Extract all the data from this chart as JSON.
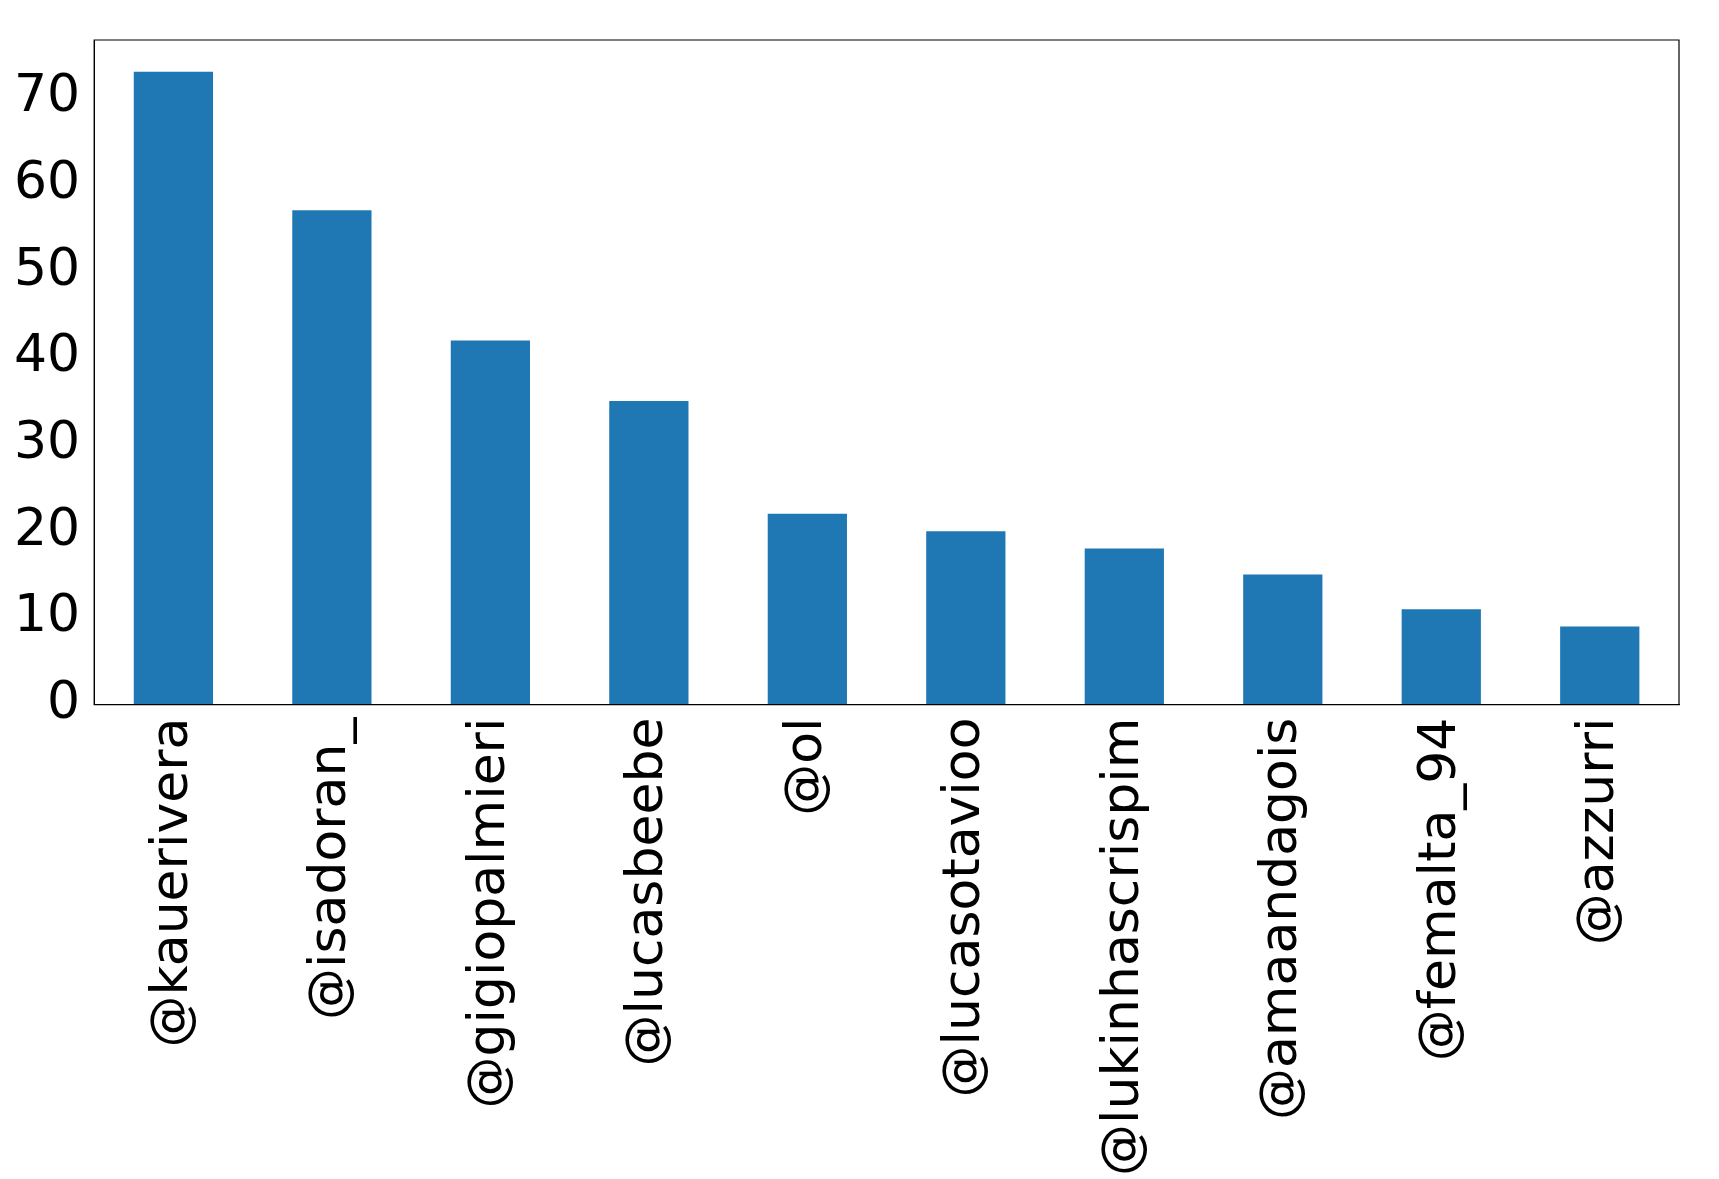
{
  "chart_data": {
    "type": "bar",
    "categories": [
      "@kauerivera",
      "@isadoran_",
      "@gigiopalmieri",
      "@lucasbeebe",
      "@ol",
      "@lucasotavioo",
      "@lukinhascrispim",
      "@amaandagois",
      "@femalta_94",
      "@azzurri"
    ],
    "values": [
      73,
      57,
      42,
      35,
      22,
      20,
      18,
      15,
      11,
      9
    ],
    "color": "#1f77b4",
    "ylim": [
      0,
      76.65
    ],
    "yticks": [
      0,
      10,
      20,
      30,
      40,
      50,
      60,
      70
    ],
    "grid": false,
    "legend": false
  }
}
